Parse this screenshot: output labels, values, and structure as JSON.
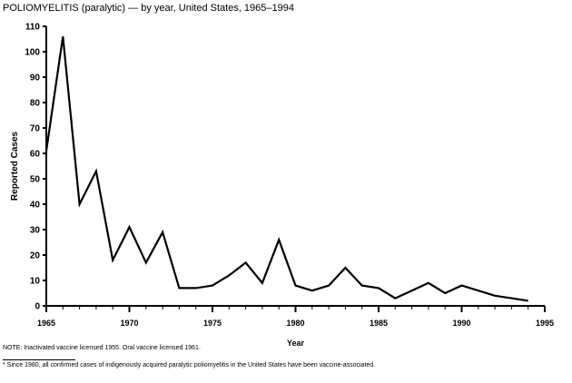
{
  "chart_data": {
    "type": "line",
    "title": "POLIOMYELITIS (paralytic) — by year, United States, 1965–1994",
    "xlabel": "Year",
    "ylabel": "Reported Cases",
    "xlim": [
      1965,
      1995
    ],
    "ylim": [
      0,
      110
    ],
    "xticks": [
      1965,
      1970,
      1975,
      1980,
      1985,
      1990,
      1995
    ],
    "yticks": [
      0,
      10,
      20,
      30,
      40,
      50,
      60,
      70,
      80,
      90,
      100,
      110
    ],
    "grid": false,
    "line_color": "#000000",
    "x": [
      1965,
      1966,
      1967,
      1968,
      1969,
      1970,
      1971,
      1972,
      1973,
      1974,
      1975,
      1976,
      1977,
      1978,
      1979,
      1980,
      1981,
      1982,
      1983,
      1984,
      1985,
      1986,
      1987,
      1988,
      1989,
      1990,
      1991,
      1992,
      1993,
      1994
    ],
    "values": [
      61,
      106,
      40,
      53,
      18,
      31,
      17,
      29,
      7,
      7,
      8,
      12,
      17,
      9,
      26,
      8,
      6,
      8,
      15,
      8,
      7,
      3,
      6,
      9,
      5,
      8,
      6,
      4,
      3,
      2
    ]
  },
  "notes": {
    "note": "NOTE: Inactivated vaccine licensed 1955. Oral vaccine licensed 1961.",
    "footnote": "* Since 1980, all confirmed cases of indigenously acquired paralytic poliomyelitis in the United States have been vaccine-associated."
  }
}
